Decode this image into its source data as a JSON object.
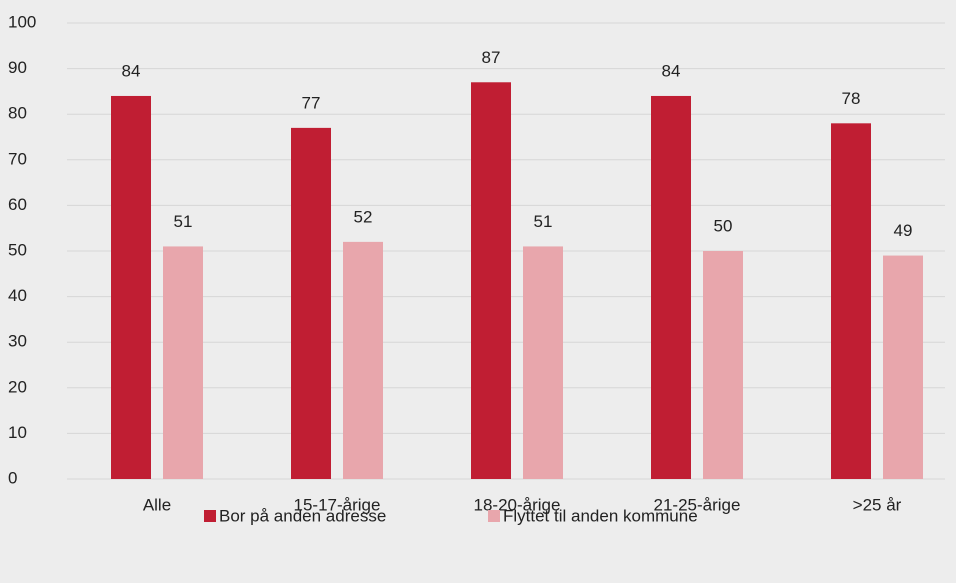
{
  "chart_data": {
    "type": "bar",
    "categories": [
      "Alle",
      "15-17-årige",
      "18-20-årige",
      "21-25-årige",
      ">25 år"
    ],
    "series": [
      {
        "name": "Bor på anden adresse",
        "color": "#c01e33",
        "values": [
          84,
          77,
          87,
          84,
          78
        ]
      },
      {
        "name": "Flyttet til anden kommune",
        "color": "#e8a6ac",
        "values": [
          51,
          52,
          51,
          50,
          49
        ]
      }
    ],
    "ylim": [
      0,
      100
    ],
    "yticks": [
      0,
      10,
      20,
      30,
      40,
      50,
      60,
      70,
      80,
      90,
      100
    ],
    "grid": true,
    "legend": "bottom"
  }
}
